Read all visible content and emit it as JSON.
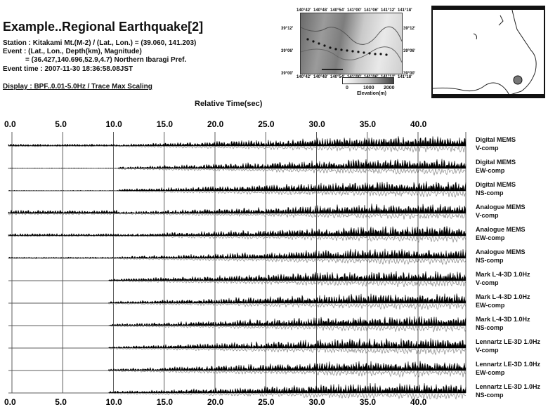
{
  "header": {
    "title": "Example..Regional Earthquake[2]",
    "station": "Station : Kitakami Mt.(M-2) / (Lat., Lon.) = (39.060, 141.203)",
    "event": "Event : (Lat., Lon., Depth(km), Magnitude)",
    "event_values": "= (36.427,140.696,52.9,4.7) Northern Ibaragi Pref.",
    "event_time": "Event time : 2007-11-30 18:36:58.08JST",
    "display": "Display : BPF..0.01-5.0Hz  / Trace Max Scaling"
  },
  "relief_map": {
    "top_ticks": [
      "140°42'",
      "140°48'",
      "140°54'",
      "141°00'",
      "141°06'",
      "141°12'",
      "141°18'"
    ],
    "left_ticks": [
      "39°12'",
      "39°06'",
      "39°00'"
    ],
    "elevation_label": "Elevation(m)",
    "elevation_ticks": [
      "0",
      "1000",
      "2000"
    ]
  },
  "chart_data": {
    "type": "line",
    "title": "",
    "xlabel": "Relative Time(sec)",
    "ylabel": "",
    "xlim": [
      0,
      45
    ],
    "x_ticks": [
      "0.0",
      "5.0",
      "10.0",
      "15.0",
      "20.0",
      "25.0",
      "30.0",
      "35.0",
      "40.0"
    ],
    "x_tick_values": [
      0,
      5,
      10,
      15,
      20,
      25,
      30,
      35,
      40
    ],
    "grid": true,
    "traces": [
      {
        "sensor": "Digital MEMS",
        "component": "V-comp",
        "onset": 10.5,
        "pre_noise": 0.22,
        "pre_filled": true
      },
      {
        "sensor": "Digital MEMS",
        "component": "EW-comp",
        "onset": 10.5,
        "pre_noise": 0.06,
        "pre_filled": false
      },
      {
        "sensor": "Digital MEMS",
        "component": "NS-comp",
        "onset": 10.5,
        "pre_noise": 0.06,
        "pre_filled": false
      },
      {
        "sensor": "Analogue MEMS",
        "component": "V-comp",
        "onset": 10.5,
        "pre_noise": 0.35,
        "pre_filled": true
      },
      {
        "sensor": "Analogue MEMS",
        "component": "EW-comp",
        "onset": 10.5,
        "pre_noise": 0.25,
        "pre_filled": true
      },
      {
        "sensor": "Analogue MEMS",
        "component": "NS-comp",
        "onset": 10.5,
        "pre_noise": 0.15,
        "pre_filled": true
      },
      {
        "sensor": "Mark L-4-3D 1.0Hz",
        "component": "V-comp",
        "onset": 9.5,
        "pre_noise": 0.0,
        "pre_filled": false
      },
      {
        "sensor": "Mark L-4-3D 1.0Hz",
        "component": "EW-comp",
        "onset": 9.5,
        "pre_noise": 0.0,
        "pre_filled": false
      },
      {
        "sensor": "Mark L-4-3D 1.0Hz",
        "component": "NS-comp",
        "onset": 9.5,
        "pre_noise": 0.0,
        "pre_filled": false
      },
      {
        "sensor": "Lennartz LE-3D 1.0Hz",
        "component": "V-comp",
        "onset": 9.5,
        "pre_noise": 0.0,
        "pre_filled": false
      },
      {
        "sensor": "Lennartz LE-3D 1.0Hz",
        "component": "EW-comp",
        "onset": 9.5,
        "pre_noise": 0.0,
        "pre_filled": false
      },
      {
        "sensor": "Lennartz LE-3D 1.0Hz",
        "component": "NS-comp",
        "onset": 9.5,
        "pre_noise": 0.0,
        "pre_filled": false
      }
    ]
  }
}
